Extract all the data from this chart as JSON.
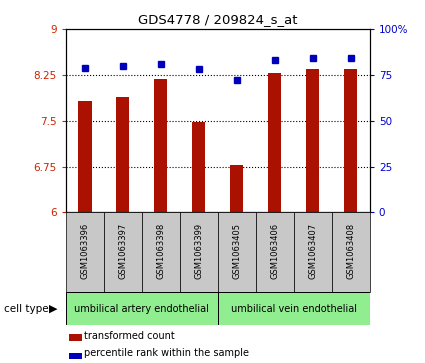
{
  "title": "GDS4778 / 209824_s_at",
  "samples": [
    "GSM1063396",
    "GSM1063397",
    "GSM1063398",
    "GSM1063399",
    "GSM1063405",
    "GSM1063406",
    "GSM1063407",
    "GSM1063408"
  ],
  "bar_values": [
    7.83,
    7.88,
    8.18,
    7.48,
    6.77,
    8.28,
    8.35,
    8.35
  ],
  "dot_values": [
    79,
    80,
    81,
    78,
    72,
    83,
    84,
    84
  ],
  "ylim_left": [
    6,
    9
  ],
  "ylim_right": [
    0,
    100
  ],
  "yticks_left": [
    6,
    6.75,
    7.5,
    8.25,
    9
  ],
  "yticks_right": [
    0,
    25,
    50,
    75,
    100
  ],
  "ytick_labels_left": [
    "6",
    "6.75",
    "7.5",
    "8.25",
    "9"
  ],
  "ytick_labels_right": [
    "0",
    "25",
    "50",
    "75",
    "100%"
  ],
  "bar_color": "#AA1100",
  "dot_color": "#0000BB",
  "grid_color": "#000000",
  "cell_type_groups": [
    {
      "label": "umbilical artery endothelial",
      "color": "#90EE90"
    },
    {
      "label": "umbilical vein endothelial",
      "color": "#90EE90"
    }
  ],
  "cell_type_label": "cell type",
  "legend_bar_label": "transformed count",
  "legend_dot_label": "percentile rank within the sample",
  "tick_label_color_left": "#CC2200",
  "tick_label_color_right": "#0000CC",
  "background_plot": "#FFFFFF",
  "background_xtick": "#C8C8C8"
}
